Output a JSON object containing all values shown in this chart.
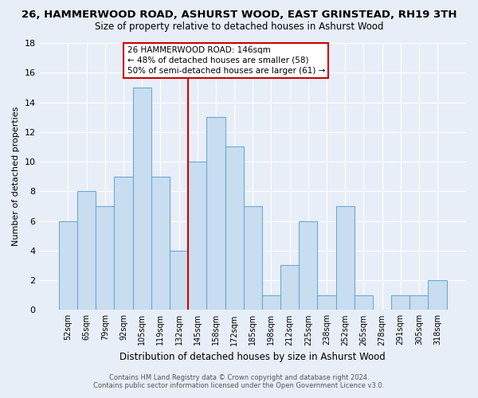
{
  "title": "26, HAMMERWOOD ROAD, ASHURST WOOD, EAST GRINSTEAD, RH19 3TH",
  "subtitle": "Size of property relative to detached houses in Ashurst Wood",
  "xlabel": "Distribution of detached houses by size in Ashurst Wood",
  "ylabel": "Number of detached properties",
  "categories": [
    "52sqm",
    "65sqm",
    "79sqm",
    "92sqm",
    "105sqm",
    "119sqm",
    "132sqm",
    "145sqm",
    "158sqm",
    "172sqm",
    "185sqm",
    "198sqm",
    "212sqm",
    "225sqm",
    "238sqm",
    "252sqm",
    "265sqm",
    "278sqm",
    "291sqm",
    "305sqm",
    "318sqm"
  ],
  "values": [
    6,
    8,
    7,
    9,
    15,
    9,
    4,
    10,
    13,
    11,
    7,
    1,
    3,
    6,
    1,
    7,
    1,
    0,
    1,
    1,
    2
  ],
  "bar_color": "#c9ddf0",
  "bar_edge_color": "#6aaad4",
  "highlight_index": 7,
  "highlight_line_color": "#cc0000",
  "ylim": [
    0,
    18
  ],
  "yticks": [
    0,
    2,
    4,
    6,
    8,
    10,
    12,
    14,
    16,
    18
  ],
  "annotation_title": "26 HAMMERWOOD ROAD: 146sqm",
  "annotation_line1": "← 48% of detached houses are smaller (58)",
  "annotation_line2": "50% of semi-detached houses are larger (61) →",
  "annotation_box_color": "#ffffff",
  "annotation_box_edge": "#cc0000",
  "footer_line1": "Contains HM Land Registry data © Crown copyright and database right 2024.",
  "footer_line2": "Contains public sector information licensed under the Open Government Licence v3.0.",
  "background_color": "#e8eef8",
  "grid_color": "#ffffff",
  "title_fontsize": 9.5,
  "subtitle_fontsize": 8.5
}
